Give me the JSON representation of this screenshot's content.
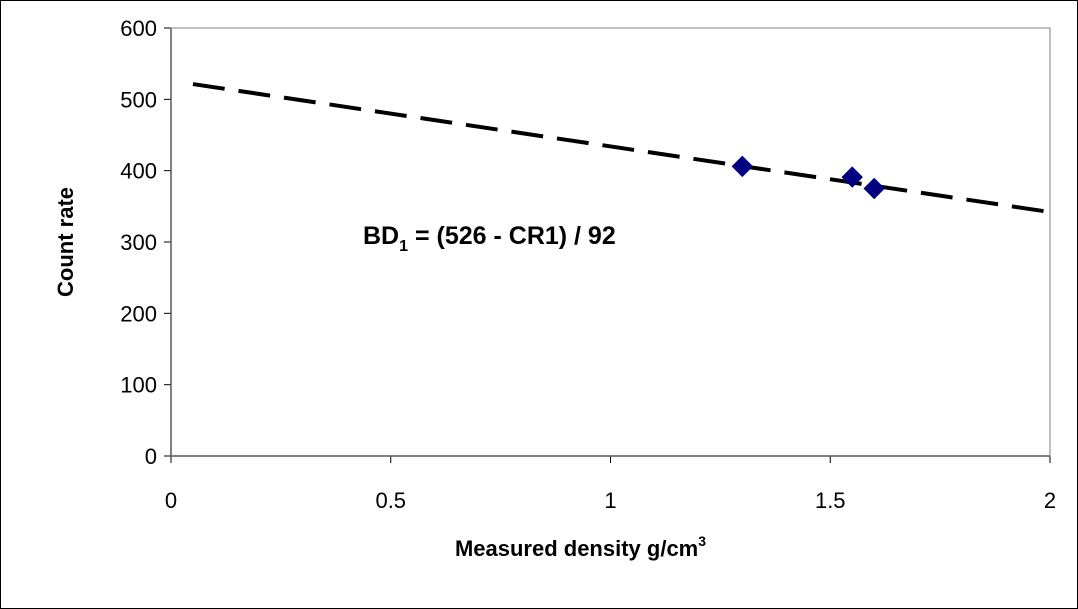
{
  "chart_data": {
    "type": "scatter",
    "title": "",
    "xlabel": {
      "text": "Measured density g/cm",
      "superscript": "3"
    },
    "ylabel": "Count rate",
    "xlim": [
      0,
      2
    ],
    "ylim": [
      0,
      600
    ],
    "x_ticks": [
      "0",
      "0.5",
      "1",
      "1.5",
      "2"
    ],
    "y_ticks": [
      "0",
      "100",
      "200",
      "300",
      "400",
      "500",
      "600"
    ],
    "grid": false,
    "legend": "none",
    "series": [
      {
        "points": [
          {
            "x": 1.3,
            "y": 406
          },
          {
            "x": 1.55,
            "y": 391
          },
          {
            "x": 1.6,
            "y": 375
          }
        ],
        "marker": "diamond",
        "color": "#000080"
      }
    ],
    "trendline": {
      "style": "dashed",
      "color": "#000000",
      "x": [
        0.05,
        2.0
      ],
      "y": [
        521.4,
        342
      ]
    },
    "annotation": {
      "prefix": "BD",
      "subscript": "1",
      "suffix": " = (526 - CR1) / 92"
    }
  }
}
